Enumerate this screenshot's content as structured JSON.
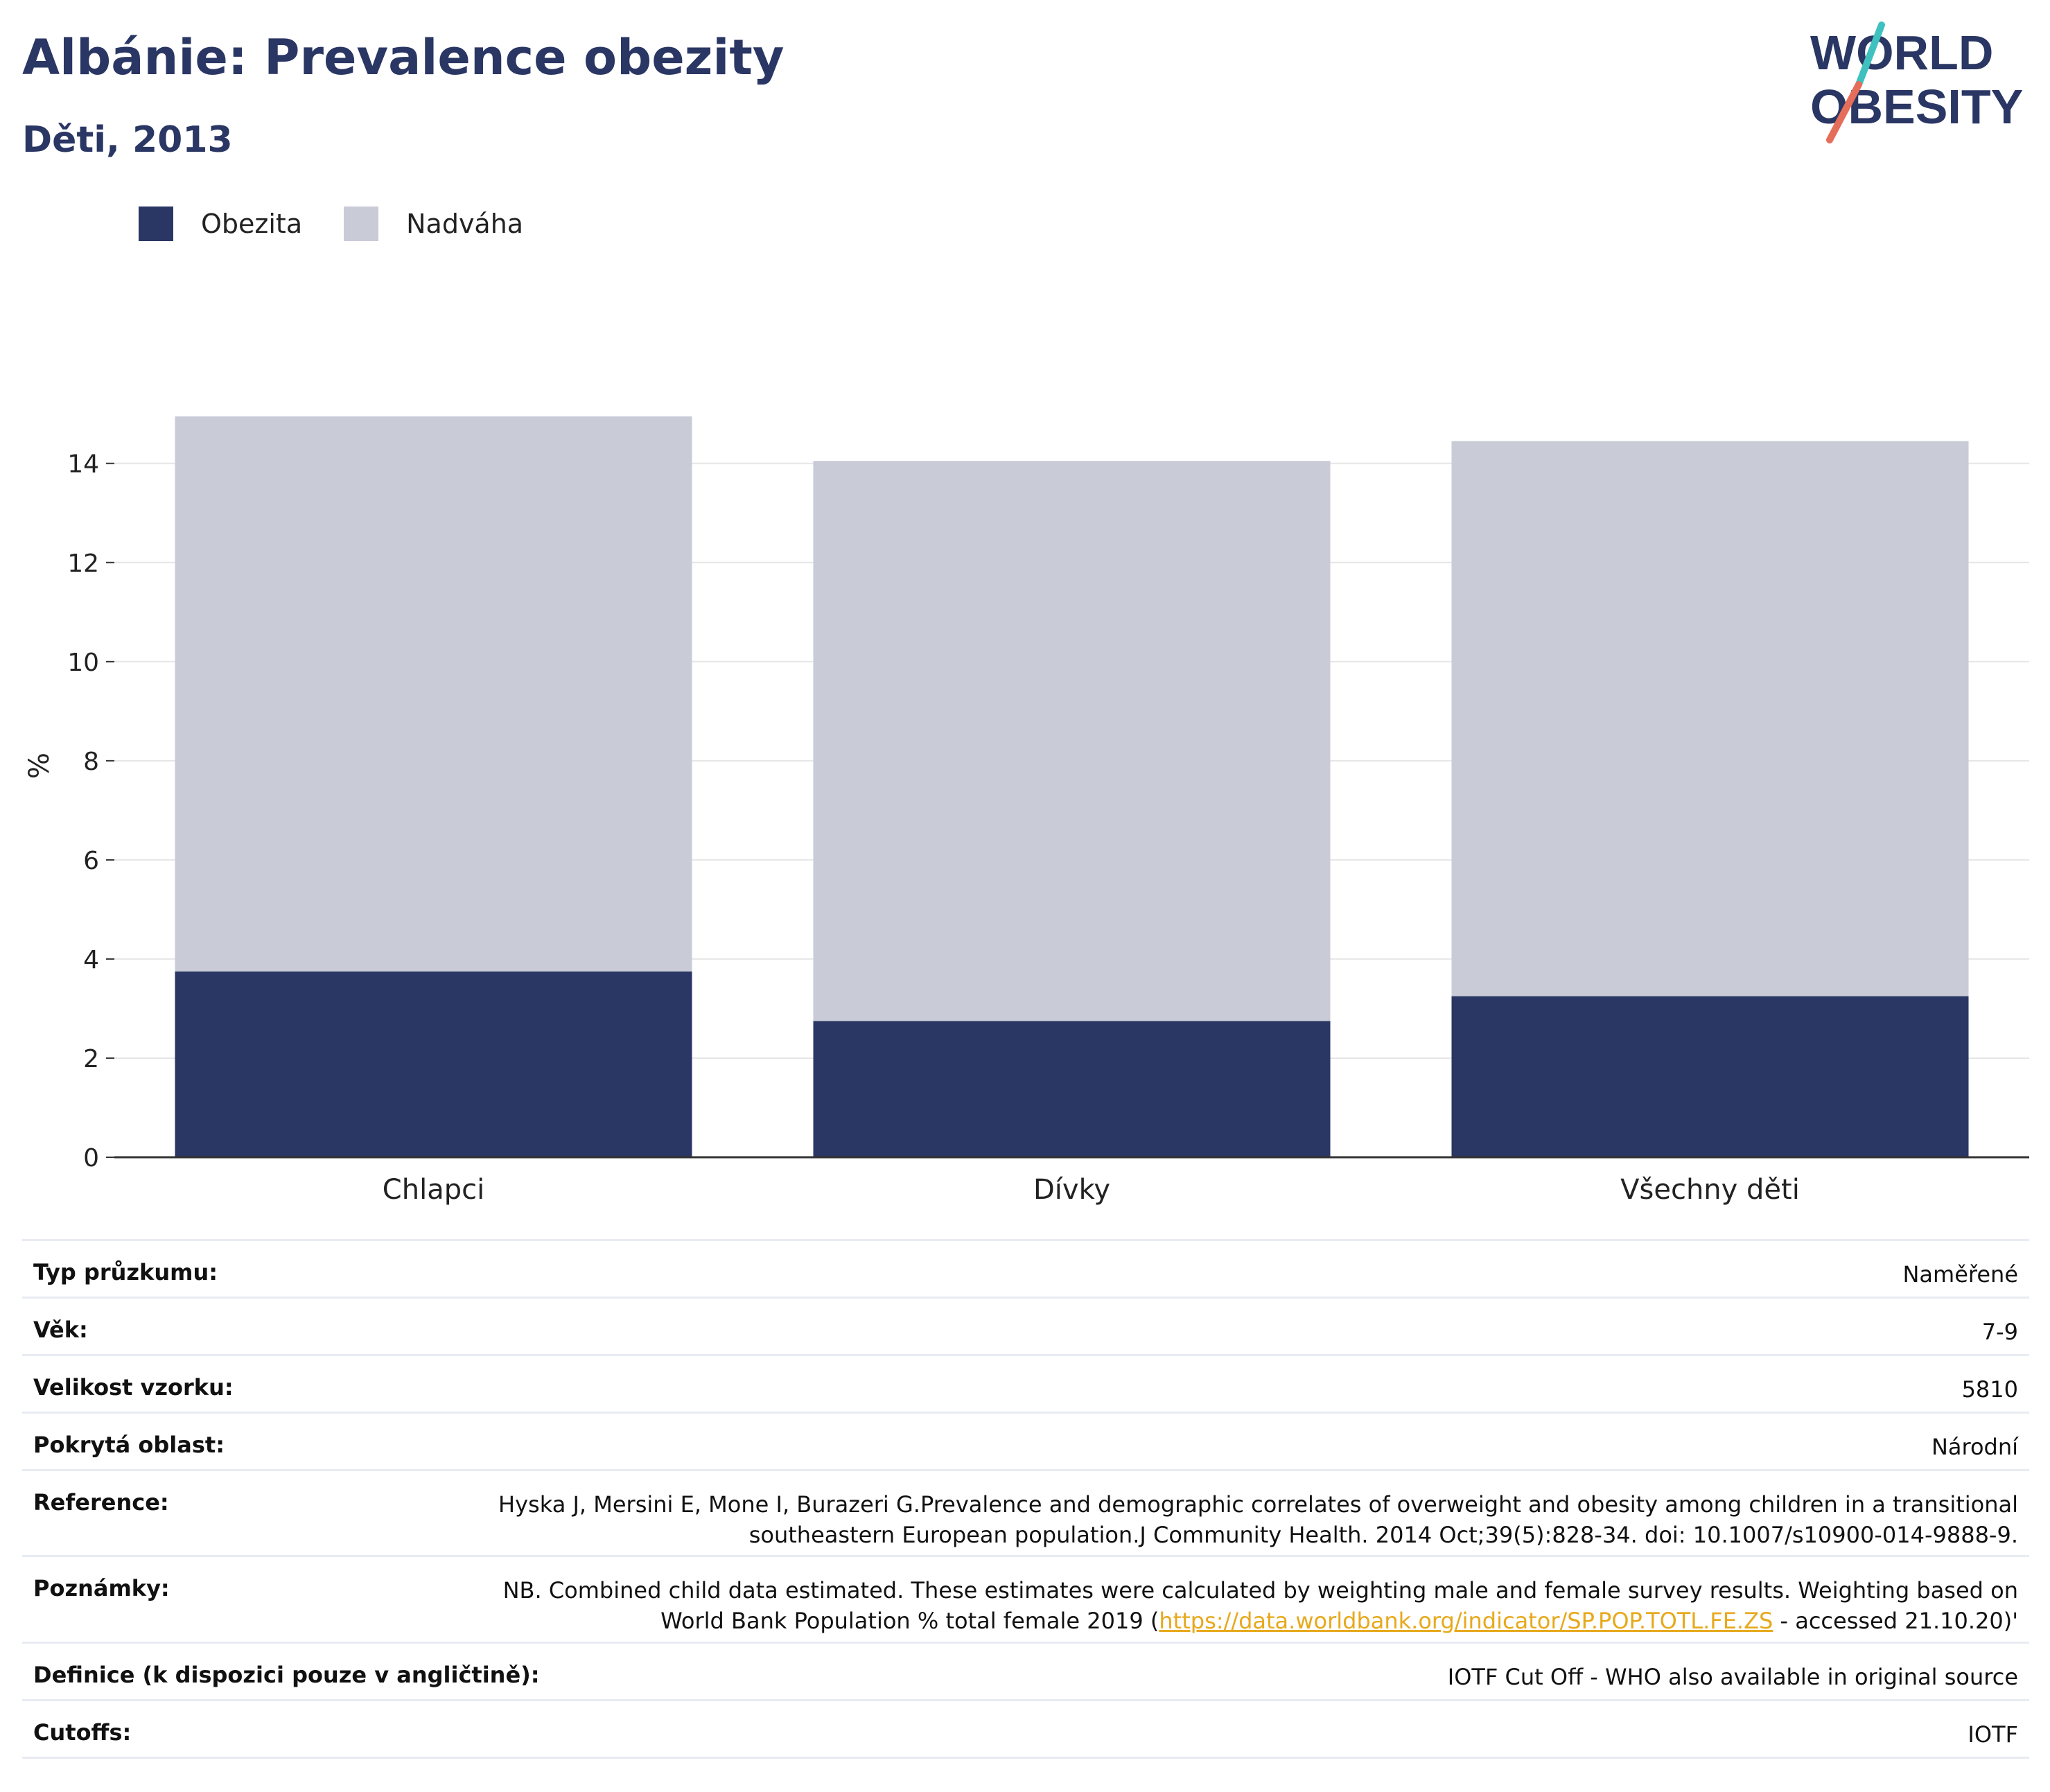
{
  "header": {
    "title": "Albánie: Prevalence obezity",
    "subtitle": "Děti, 2013"
  },
  "logo": {
    "line1": "WORLD",
    "line2": "OBESITY",
    "colors": {
      "text": "#2a3663",
      "slash_top": "#3fc1c0",
      "slash_bottom": "#e56e5a"
    }
  },
  "legend": {
    "items": [
      {
        "label": "Obezita",
        "color": "#2a3663"
      },
      {
        "label": "Nadváha",
        "color": "#c9cbd7"
      }
    ]
  },
  "chart_data": {
    "type": "bar",
    "stacked": true,
    "categories": [
      "Chlapci",
      "Dívky",
      "Všechny děti"
    ],
    "series": [
      {
        "name": "Obezita",
        "color": "#2a3663",
        "values": [
          3.75,
          2.75,
          3.25
        ]
      },
      {
        "name": "Nadváha",
        "color": "#c9cbd7",
        "values": [
          11.2,
          11.3,
          11.2
        ]
      }
    ],
    "ylabel": "%",
    "ylim": [
      0,
      15.8
    ],
    "yticks": [
      0,
      2,
      4,
      6,
      8,
      10,
      12,
      14
    ],
    "grid": true
  },
  "meta": {
    "rows": [
      {
        "key": "Typ průzkumu:",
        "value": "Naměřené"
      },
      {
        "key": "Věk:",
        "value": "7-9"
      },
      {
        "key": "Velikost vzorku:",
        "value": "5810"
      },
      {
        "key": "Pokrytá oblast:",
        "value": "Národní"
      },
      {
        "key": "Reference:",
        "value": "Hyska J, Mersini E, Mone I, Burazeri G.Prevalence and demographic correlates of overweight and obesity among children in a transitional southeastern European population.J Community Health. 2014 Oct;39(5):828-34. doi: 10.1007/s10900-014-9888-9."
      },
      {
        "key": "Poznámky:",
        "value_before": "NB. Combined child data estimated. These estimates were calculated by weighting male and female survey results. Weighting based on World Bank Population % total female 2019 (",
        "link": "https://data.worldbank.org/indicator/SP.POP.TOTL.FE.ZS",
        "value_after": " - accessed 21.10.20)'"
      },
      {
        "key": "Definice (k dispozici pouze v angličtině):",
        "value": "IOTF Cut Off - WHO also available in original source"
      },
      {
        "key": "Cutoffs:",
        "value": "IOTF"
      }
    ]
  }
}
